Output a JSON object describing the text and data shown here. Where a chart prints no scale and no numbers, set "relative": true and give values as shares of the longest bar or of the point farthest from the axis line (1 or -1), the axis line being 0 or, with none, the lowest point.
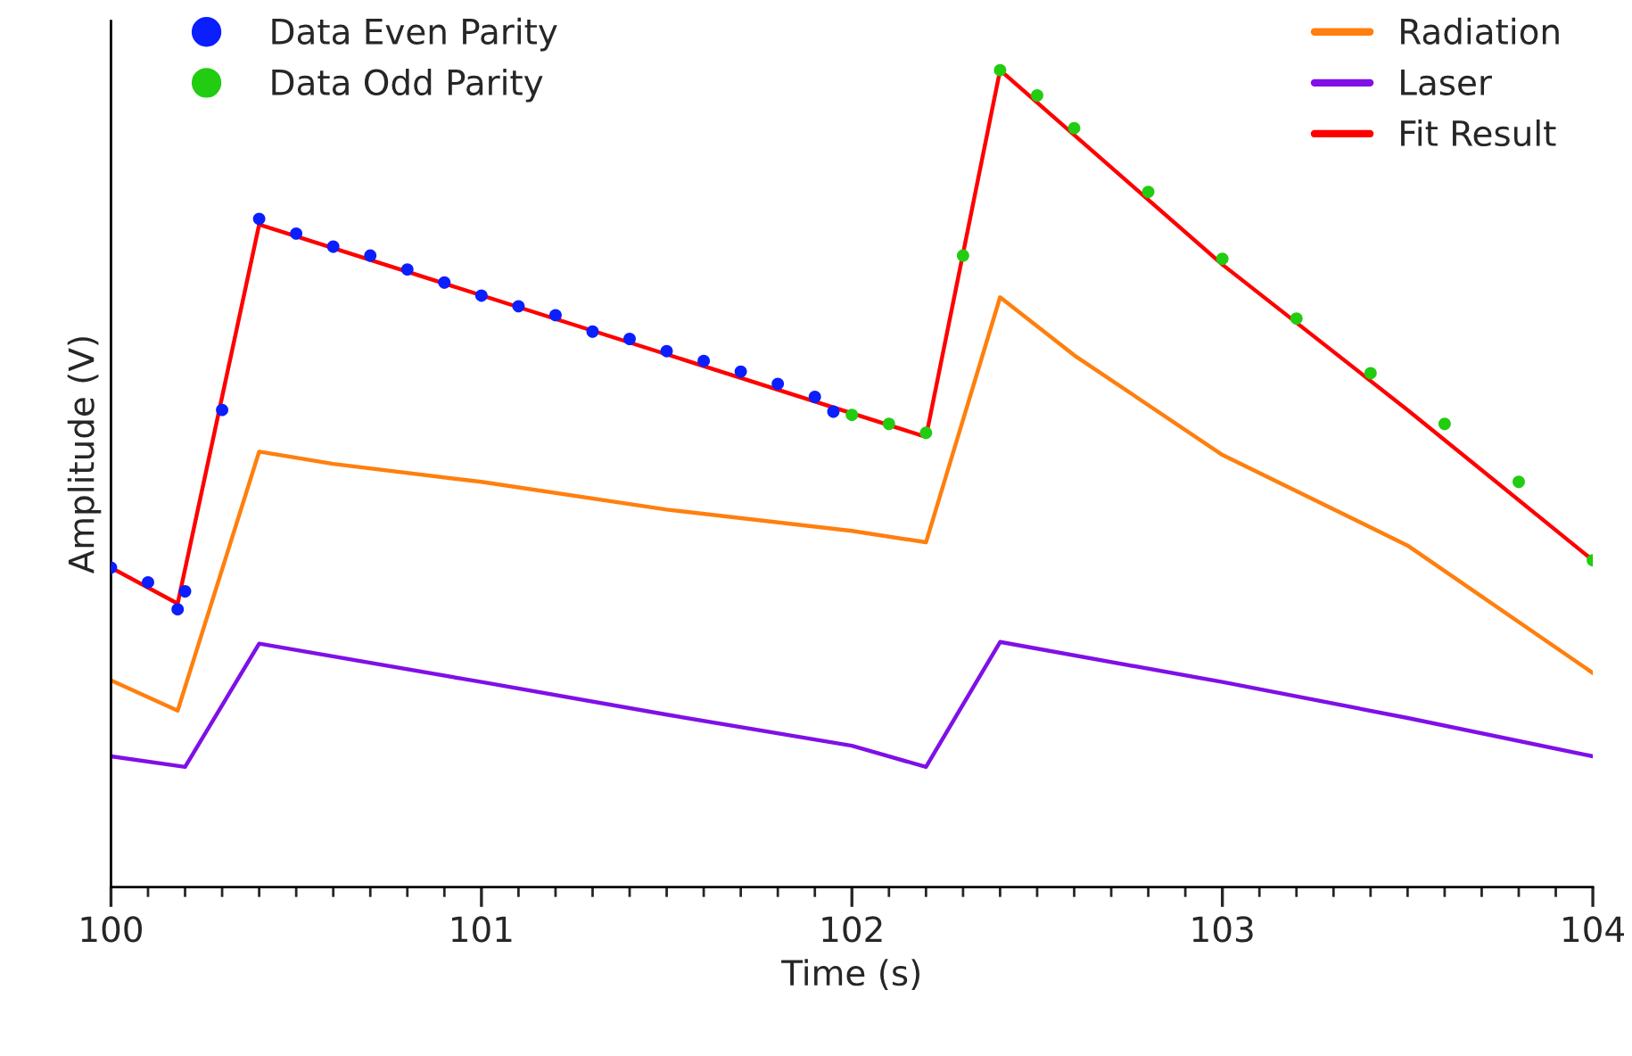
{
  "chart_data": {
    "type": "line",
    "relative": true,
    "xlabel": "Time (s)",
    "ylabel": "Amplitude (V)",
    "xlim": [
      100,
      104
    ],
    "xticks": [
      100,
      {
        "value": 100.1,
        "label": null
      },
      {
        "value": 100.2,
        "label": null
      },
      {
        "value": 100.3,
        "label": null
      },
      {
        "value": 100.4,
        "label": null
      },
      {
        "value": 100.5,
        "label": null
      },
      {
        "value": 100.6,
        "label": null
      },
      {
        "value": 100.7,
        "label": null
      },
      {
        "value": 100.8,
        "label": null
      },
      {
        "value": 100.9,
        "label": null
      },
      101,
      {
        "value": 101.1,
        "label": null
      },
      {
        "value": 101.2,
        "label": null
      },
      {
        "value": 101.3,
        "label": null
      },
      {
        "value": 101.4,
        "label": null
      },
      {
        "value": 101.5,
        "label": null
      },
      {
        "value": 101.6,
        "label": null
      },
      {
        "value": 101.7,
        "label": null
      },
      {
        "value": 101.8,
        "label": null
      },
      {
        "value": 101.9,
        "label": null
      },
      102,
      {
        "value": 102.1,
        "label": null
      },
      {
        "value": 102.2,
        "label": null
      },
      {
        "value": 102.3,
        "label": null
      },
      {
        "value": 102.4,
        "label": null
      },
      {
        "value": 102.5,
        "label": null
      },
      {
        "value": 102.6,
        "label": null
      },
      {
        "value": 102.7,
        "label": null
      },
      {
        "value": 102.8,
        "label": null
      },
      {
        "value": 102.9,
        "label": null
      },
      103,
      {
        "value": 103.1,
        "label": null
      },
      {
        "value": 103.2,
        "label": null
      },
      {
        "value": 103.3,
        "label": null
      },
      {
        "value": 103.4,
        "label": null
      },
      {
        "value": 103.5,
        "label": null
      },
      {
        "value": 103.6,
        "label": null
      },
      {
        "value": 103.7,
        "label": null
      },
      {
        "value": 103.8,
        "label": null
      },
      {
        "value": 103.9,
        "label": null
      },
      104
    ],
    "tick_labels": "x",
    "grid": false,
    "legend": "top",
    "series": [
      {
        "name": "Data Even Parity",
        "type": "scatter",
        "marker": "circle",
        "color": "#0a1eff",
        "x": [
          100.0,
          100.1,
          100.18,
          100.2,
          100.3,
          100.4,
          100.5,
          100.6,
          100.7,
          100.8,
          100.9,
          101.0,
          101.1,
          101.2,
          101.3,
          101.4,
          101.5,
          101.6,
          101.7,
          101.8,
          101.9,
          101.95
        ],
        "values": [
          0.391,
          0.373,
          0.34,
          0.362,
          0.584,
          0.818,
          0.8,
          0.784,
          0.773,
          0.756,
          0.74,
          0.724,
          0.711,
          0.7,
          0.68,
          0.671,
          0.656,
          0.644,
          0.631,
          0.616,
          0.6,
          0.582
        ]
      },
      {
        "name": "Data Odd Parity",
        "type": "scatter",
        "marker": "circle",
        "color": "#22cc11",
        "x": [
          102.0,
          102.1,
          102.2,
          102.3,
          102.4,
          102.5,
          102.6,
          102.8,
          103.0,
          103.2,
          103.4,
          103.6,
          103.8,
          104.0
        ],
        "values": [
          0.578,
          0.567,
          0.556,
          0.773,
          1.0,
          0.969,
          0.929,
          0.851,
          0.769,
          0.696,
          0.629,
          0.567,
          0.496,
          0.4
        ]
      },
      {
        "name": "Radiation",
        "type": "line",
        "color": "#ff7f0e",
        "x": [
          100,
          100.18,
          100.4,
          100.6,
          101.0,
          101.5,
          102.0,
          102.2,
          102.4,
          102.6,
          103.0,
          103.5,
          104.0
        ],
        "values": [
          0.253,
          0.216,
          0.533,
          0.518,
          0.496,
          0.462,
          0.436,
          0.422,
          0.722,
          0.651,
          0.529,
          0.418,
          0.262
        ]
      },
      {
        "name": "Laser",
        "type": "line",
        "color": "#7f10e8",
        "x": [
          100,
          100.2,
          100.4,
          101.0,
          101.5,
          102.0,
          102.2,
          102.4,
          103.0,
          103.5,
          104.0
        ],
        "values": [
          0.16,
          0.147,
          0.298,
          0.251,
          0.211,
          0.173,
          0.147,
          0.3,
          0.251,
          0.207,
          0.16
        ]
      },
      {
        "name": "Fit Result",
        "type": "line",
        "color": "#ff0000",
        "x": [
          100,
          100.18,
          100.4,
          102.2,
          102.4,
          103.0,
          103.5,
          104.0
        ],
        "values": [
          0.391,
          0.347,
          0.811,
          0.551,
          1.0,
          0.762,
          0.584,
          0.4
        ]
      }
    ]
  }
}
